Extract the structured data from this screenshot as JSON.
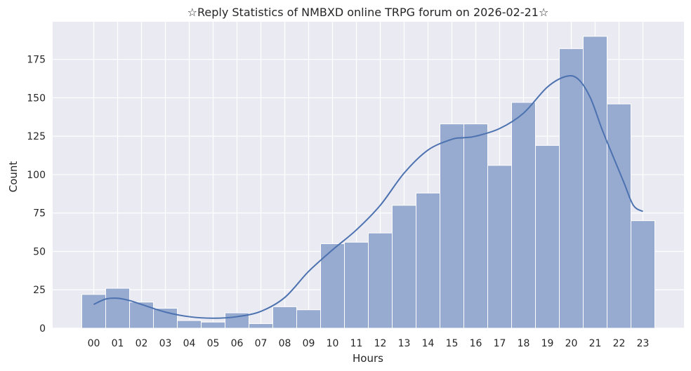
{
  "chart_data": {
    "type": "bar",
    "title": "☆Reply Statistics of NMBXD online TRPG forum on 2026-02-21☆",
    "xlabel": "Hours",
    "ylabel": "Count",
    "categories": [
      "00",
      "01",
      "02",
      "03",
      "04",
      "05",
      "06",
      "07",
      "08",
      "09",
      "10",
      "11",
      "12",
      "13",
      "14",
      "15",
      "16",
      "17",
      "18",
      "19",
      "20",
      "21",
      "22",
      "23"
    ],
    "values": [
      22,
      26,
      17,
      13,
      5,
      4,
      10,
      3,
      14,
      12,
      55,
      56,
      62,
      80,
      88,
      133,
      133,
      106,
      147,
      119,
      182,
      190,
      146,
      70
    ],
    "kde": {
      "x": [
        0,
        0.5,
        1,
        1.5,
        2,
        3,
        4,
        5,
        6,
        7,
        8,
        9,
        10,
        11,
        12,
        13,
        14,
        15,
        15.5,
        16,
        17,
        18,
        19,
        19.8,
        20.3,
        20.8,
        21.3,
        21.8,
        22.2,
        22.6,
        23
      ],
      "y": [
        15.5,
        19,
        19.5,
        18,
        15.5,
        10.5,
        7.5,
        6.5,
        7.5,
        11,
        20,
        37,
        51,
        64,
        80,
        101,
        116,
        123,
        124,
        125,
        130,
        140,
        157,
        164,
        162,
        150,
        129,
        110,
        95,
        80,
        76
      ]
    },
    "ylim": [
      0,
      199.5
    ],
    "yticks": [
      0,
      25,
      50,
      75,
      100,
      125,
      150,
      175
    ],
    "grid": true,
    "colors": {
      "bar_fill": "#97aad0",
      "bar_stroke": "#ffffff",
      "kde_line": "#4c72b0",
      "plot_bg": "#eaeaf2",
      "grid": "#ffffff"
    }
  }
}
